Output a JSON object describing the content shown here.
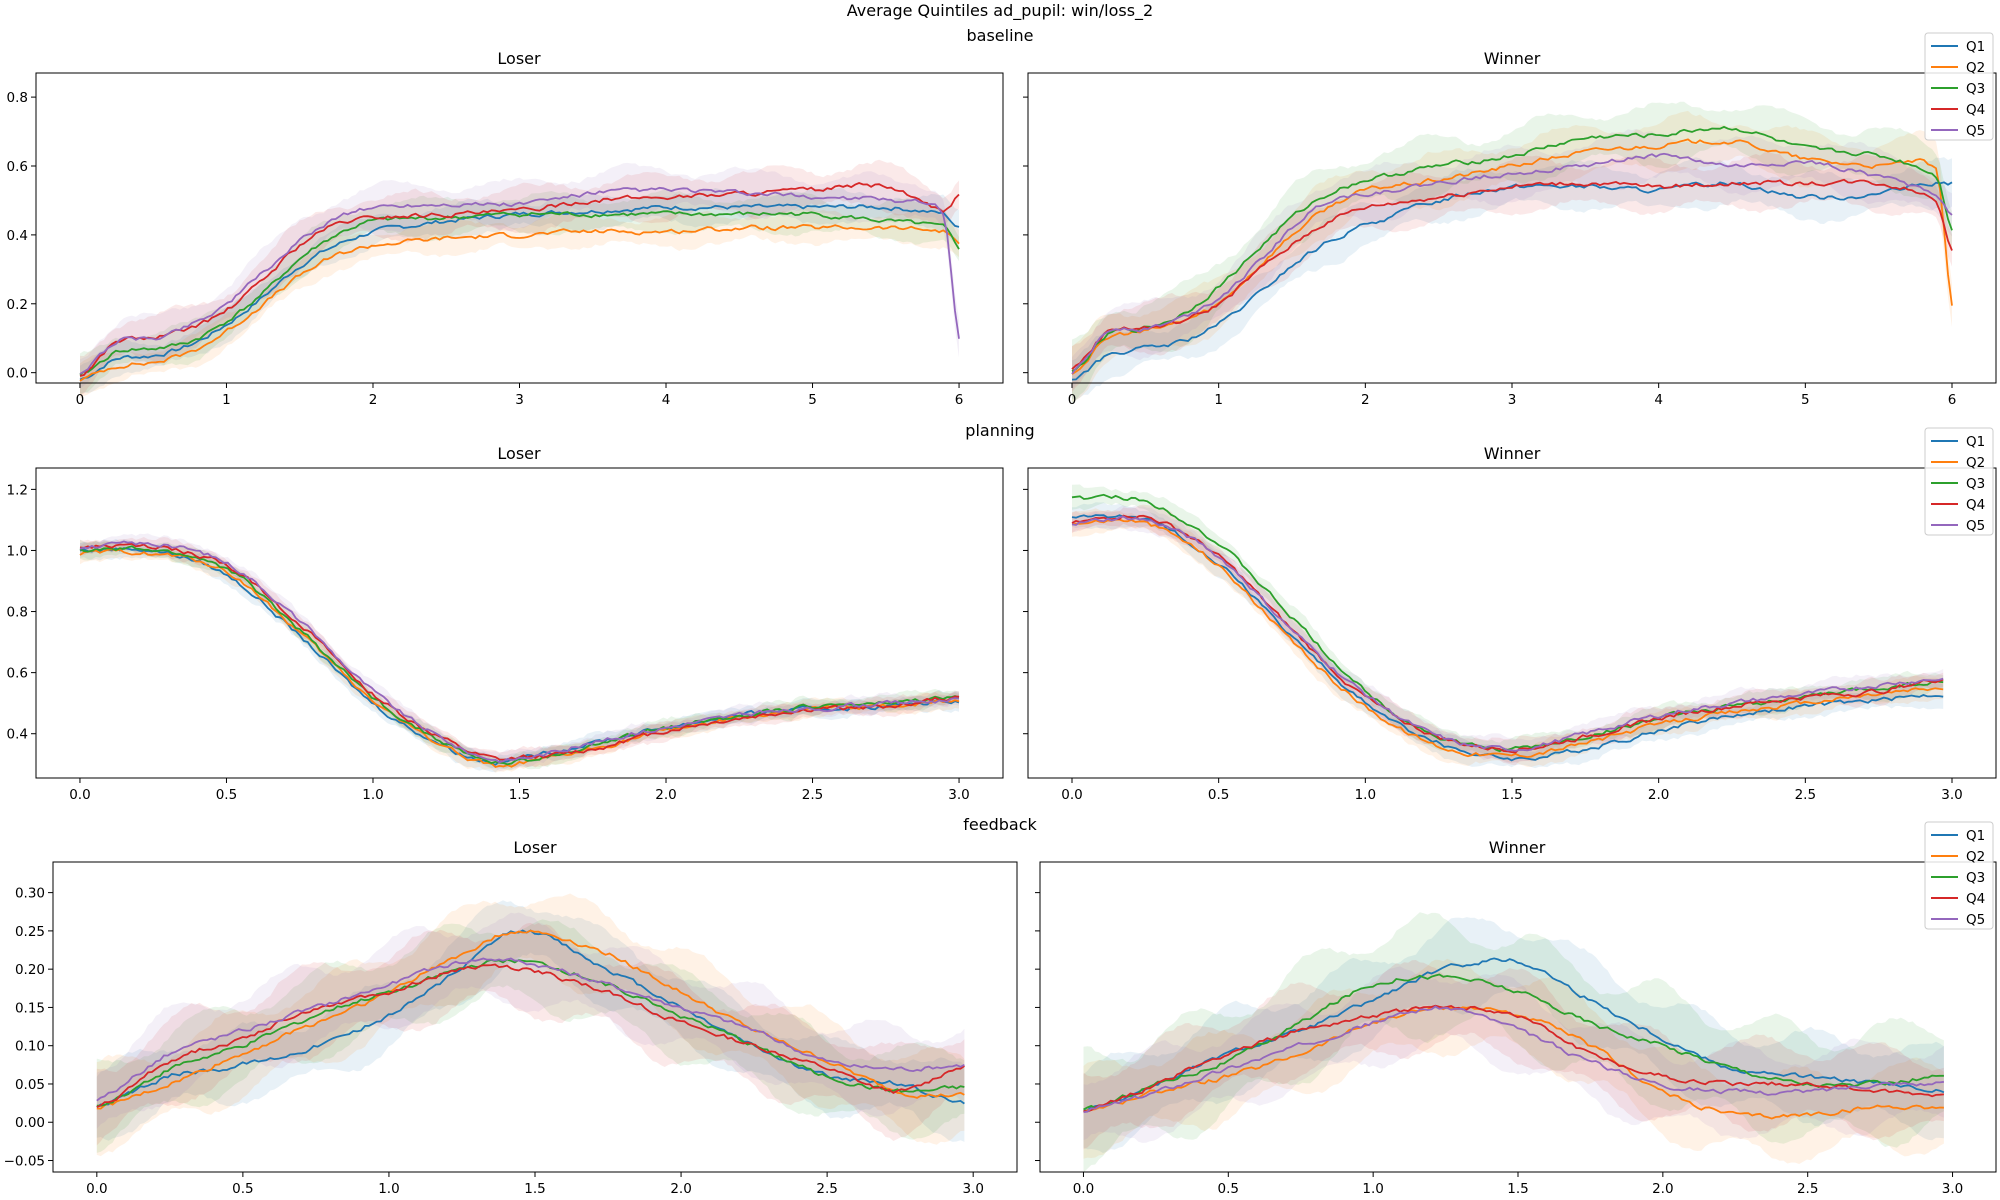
{
  "figure_title": "Average Quintiles ad_pupil: win/loss_2",
  "colors": {
    "Q1": "#1f77b4",
    "Q2": "#ff7f0e",
    "Q3": "#2ca02c",
    "Q4": "#d62728",
    "Q5": "#9467bd"
  },
  "chart_data": [
    {
      "type": "line",
      "row_title": "baseline",
      "title": "Loser",
      "xlim": [
        -0.3,
        6.3
      ],
      "ylim": [
        -0.03,
        0.87
      ],
      "xticks": [
        "0",
        "1",
        "2",
        "3",
        "4",
        "5",
        "6"
      ],
      "yticks": [
        "0.0",
        "0.2",
        "0.4",
        "0.6",
        "0.8"
      ],
      "legend": false,
      "x": [
        0,
        0.25,
        0.5,
        0.75,
        1,
        1.25,
        1.5,
        1.75,
        2,
        2.5,
        3,
        3.5,
        4,
        4.5,
        5,
        5.5,
        5.9,
        6
      ],
      "series": [
        {
          "name": "Q1",
          "values": [
            -0.02,
            0.04,
            0.05,
            0.08,
            0.14,
            0.22,
            0.31,
            0.37,
            0.41,
            0.44,
            0.46,
            0.47,
            0.48,
            0.48,
            0.48,
            0.48,
            0.46,
            0.42
          ],
          "band": 0.05
        },
        {
          "name": "Q2",
          "values": [
            -0.02,
            0.02,
            0.03,
            0.06,
            0.12,
            0.2,
            0.28,
            0.34,
            0.37,
            0.39,
            0.4,
            0.41,
            0.41,
            0.42,
            0.42,
            0.42,
            0.41,
            0.38
          ],
          "band": 0.05
        },
        {
          "name": "Q3",
          "values": [
            -0.01,
            0.06,
            0.07,
            0.09,
            0.15,
            0.23,
            0.33,
            0.4,
            0.44,
            0.45,
            0.46,
            0.46,
            0.46,
            0.46,
            0.46,
            0.44,
            0.42,
            0.36
          ],
          "band": 0.06
        },
        {
          "name": "Q4",
          "values": [
            -0.01,
            0.09,
            0.1,
            0.13,
            0.18,
            0.27,
            0.37,
            0.43,
            0.45,
            0.46,
            0.47,
            0.5,
            0.51,
            0.52,
            0.53,
            0.54,
            0.47,
            0.52
          ],
          "band": 0.07
        },
        {
          "name": "Q5",
          "values": [
            0.0,
            0.09,
            0.1,
            0.14,
            0.2,
            0.29,
            0.38,
            0.45,
            0.48,
            0.49,
            0.49,
            0.52,
            0.53,
            0.52,
            0.51,
            0.5,
            0.46,
            0.1
          ],
          "band": 0.07
        }
      ]
    },
    {
      "type": "line",
      "row_title": "baseline",
      "title": "Winner",
      "xlim": [
        -0.3,
        6.3
      ],
      "ylim": [
        -0.03,
        0.87
      ],
      "xticks": [
        "0",
        "1",
        "2",
        "3",
        "4",
        "5",
        "6"
      ],
      "yticks": [],
      "legend": true,
      "legend_position": "top-right",
      "x": [
        0,
        0.25,
        0.5,
        0.75,
        1,
        1.25,
        1.5,
        1.75,
        2,
        2.5,
        3,
        3.5,
        4,
        4.5,
        5,
        5.5,
        5.9,
        6
      ],
      "series": [
        {
          "name": "Q1",
          "values": [
            -0.02,
            0.05,
            0.07,
            0.09,
            0.14,
            0.22,
            0.31,
            0.38,
            0.43,
            0.5,
            0.54,
            0.54,
            0.53,
            0.55,
            0.51,
            0.52,
            0.55,
            0.55
          ],
          "band": 0.07
        },
        {
          "name": "Q2",
          "values": [
            0.0,
            0.1,
            0.12,
            0.15,
            0.2,
            0.3,
            0.4,
            0.48,
            0.53,
            0.56,
            0.6,
            0.64,
            0.66,
            0.67,
            0.62,
            0.6,
            0.58,
            0.2
          ],
          "band": 0.08
        },
        {
          "name": "Q3",
          "values": [
            0.0,
            0.11,
            0.13,
            0.17,
            0.25,
            0.35,
            0.45,
            0.52,
            0.56,
            0.6,
            0.63,
            0.68,
            0.69,
            0.71,
            0.65,
            0.63,
            0.57,
            0.42
          ],
          "band": 0.09
        },
        {
          "name": "Q4",
          "values": [
            0.01,
            0.12,
            0.13,
            0.15,
            0.2,
            0.29,
            0.37,
            0.44,
            0.48,
            0.51,
            0.54,
            0.55,
            0.54,
            0.55,
            0.55,
            0.55,
            0.5,
            0.36
          ],
          "band": 0.08
        },
        {
          "name": "Q5",
          "values": [
            0.0,
            0.12,
            0.13,
            0.16,
            0.22,
            0.31,
            0.42,
            0.5,
            0.52,
            0.55,
            0.58,
            0.6,
            0.63,
            0.6,
            0.61,
            0.57,
            0.52,
            0.46
          ],
          "band": 0.08
        }
      ]
    },
    {
      "type": "line",
      "row_title": "planning",
      "title": "Loser",
      "xlim": [
        -0.15,
        3.15
      ],
      "ylim": [
        0.255,
        1.27
      ],
      "xticks": [
        "0.0",
        "0.5",
        "1.0",
        "1.5",
        "2.0",
        "2.5",
        "3.0"
      ],
      "yticks": [
        "0.4",
        "0.6",
        "0.8",
        "1.0",
        "1.2"
      ],
      "legend": false,
      "x": [
        0,
        0.25,
        0.5,
        0.75,
        1.0,
        1.25,
        1.4,
        1.5,
        1.75,
        2.0,
        2.25,
        2.5,
        2.75,
        3.0
      ],
      "series": [
        {
          "name": "Q1",
          "values": [
            1.0,
            1.0,
            0.92,
            0.72,
            0.5,
            0.36,
            0.31,
            0.32,
            0.37,
            0.42,
            0.46,
            0.48,
            0.49,
            0.51
          ],
          "band": 0.03
        },
        {
          "name": "Q2",
          "values": [
            0.99,
            0.99,
            0.93,
            0.73,
            0.51,
            0.36,
            0.3,
            0.3,
            0.35,
            0.41,
            0.45,
            0.48,
            0.49,
            0.51
          ],
          "band": 0.03
        },
        {
          "name": "Q3",
          "values": [
            1.0,
            1.0,
            0.94,
            0.74,
            0.52,
            0.37,
            0.31,
            0.31,
            0.36,
            0.42,
            0.46,
            0.49,
            0.5,
            0.52
          ],
          "band": 0.03
        },
        {
          "name": "Q4",
          "values": [
            1.01,
            1.01,
            0.95,
            0.76,
            0.53,
            0.38,
            0.32,
            0.32,
            0.35,
            0.41,
            0.45,
            0.48,
            0.49,
            0.52
          ],
          "band": 0.03
        },
        {
          "name": "Q5",
          "values": [
            1.01,
            1.02,
            0.96,
            0.77,
            0.54,
            0.38,
            0.32,
            0.32,
            0.37,
            0.42,
            0.46,
            0.48,
            0.5,
            0.51
          ],
          "band": 0.03
        }
      ]
    },
    {
      "type": "line",
      "row_title": "planning",
      "title": "Winner",
      "xlim": [
        -0.15,
        3.15
      ],
      "ylim": [
        0.255,
        1.27
      ],
      "xticks": [
        "0.0",
        "0.5",
        "1.0",
        "1.5",
        "2.0",
        "2.5",
        "3.0"
      ],
      "yticks": [],
      "legend": true,
      "legend_position": "top-right",
      "x": [
        0,
        0.25,
        0.5,
        0.75,
        1.0,
        1.25,
        1.5,
        1.75,
        2.0,
        2.25,
        2.5,
        2.75,
        2.97
      ],
      "series": [
        {
          "name": "Q1",
          "values": [
            1.11,
            1.1,
            0.96,
            0.72,
            0.5,
            0.37,
            0.32,
            0.35,
            0.41,
            0.46,
            0.49,
            0.51,
            0.53
          ],
          "band": 0.04
        },
        {
          "name": "Q2",
          "values": [
            1.09,
            1.09,
            0.95,
            0.7,
            0.49,
            0.36,
            0.33,
            0.37,
            0.43,
            0.47,
            0.5,
            0.53,
            0.55
          ],
          "band": 0.04
        },
        {
          "name": "Q3",
          "values": [
            1.17,
            1.16,
            1.02,
            0.78,
            0.54,
            0.39,
            0.35,
            0.39,
            0.45,
            0.49,
            0.52,
            0.55,
            0.57
          ],
          "band": 0.04
        },
        {
          "name": "Q4",
          "values": [
            1.09,
            1.11,
            0.98,
            0.74,
            0.52,
            0.39,
            0.35,
            0.39,
            0.45,
            0.49,
            0.52,
            0.54,
            0.58
          ],
          "band": 0.04
        },
        {
          "name": "Q5",
          "values": [
            1.09,
            1.1,
            0.98,
            0.74,
            0.53,
            0.39,
            0.35,
            0.4,
            0.46,
            0.5,
            0.53,
            0.56,
            0.58
          ],
          "band": 0.04
        }
      ]
    },
    {
      "type": "line",
      "row_title": "feedback",
      "title": "Loser",
      "xlim": [
        -0.15,
        3.15
      ],
      "ylim": [
        -0.065,
        0.34
      ],
      "xticks": [
        "0.0",
        "0.5",
        "1.0",
        "1.5",
        "2.0",
        "2.5",
        "3.0"
      ],
      "yticks": [
        "−0.05",
        "0.00",
        "0.05",
        "0.10",
        "0.15",
        "0.20",
        "0.25",
        "0.30"
      ],
      "legend": false,
      "x": [
        0,
        0.25,
        0.5,
        0.75,
        1.0,
        1.25,
        1.45,
        1.75,
        2.0,
        2.25,
        2.5,
        2.75,
        2.97
      ],
      "series": [
        {
          "name": "Q1",
          "values": [
            0.02,
            0.06,
            0.075,
            0.1,
            0.14,
            0.2,
            0.25,
            0.2,
            0.15,
            0.1,
            0.06,
            0.05,
            0.025
          ],
          "band": 0.05
        },
        {
          "name": "Q2",
          "values": [
            0.02,
            0.05,
            0.09,
            0.13,
            0.17,
            0.22,
            0.25,
            0.22,
            0.17,
            0.12,
            0.08,
            0.04,
            0.035
          ],
          "band": 0.06
        },
        {
          "name": "Q3",
          "values": [
            0.02,
            0.07,
            0.1,
            0.14,
            0.17,
            0.2,
            0.21,
            0.18,
            0.14,
            0.1,
            0.06,
            0.04,
            0.045
          ],
          "band": 0.06
        },
        {
          "name": "Q4",
          "values": [
            0.02,
            0.08,
            0.11,
            0.15,
            0.17,
            0.2,
            0.2,
            0.17,
            0.13,
            0.1,
            0.07,
            0.04,
            0.075
          ],
          "band": 0.06
        },
        {
          "name": "Q5",
          "values": [
            0.03,
            0.09,
            0.12,
            0.15,
            0.18,
            0.21,
            0.21,
            0.18,
            0.15,
            0.12,
            0.08,
            0.07,
            0.075
          ],
          "band": 0.06
        }
      ]
    },
    {
      "type": "line",
      "row_title": "feedback",
      "title": "Winner",
      "xlim": [
        -0.15,
        3.15
      ],
      "ylim": [
        -0.065,
        0.34
      ],
      "xticks": [
        "0.0",
        "0.5",
        "1.0",
        "1.5",
        "2.0",
        "2.5",
        "3.0"
      ],
      "yticks": [],
      "legend": true,
      "legend_position": "top-right",
      "x": [
        0,
        0.25,
        0.5,
        0.75,
        1.0,
        1.25,
        1.5,
        1.75,
        2.0,
        2.25,
        2.5,
        2.75,
        2.97
      ],
      "series": [
        {
          "name": "Q1",
          "values": [
            0.015,
            0.05,
            0.09,
            0.12,
            0.16,
            0.2,
            0.21,
            0.16,
            0.11,
            0.07,
            0.06,
            0.05,
            0.04
          ],
          "band": 0.06
        },
        {
          "name": "Q2",
          "values": [
            0.015,
            0.04,
            0.06,
            0.09,
            0.13,
            0.15,
            0.14,
            0.1,
            0.04,
            0.01,
            0.01,
            0.02,
            0.02
          ],
          "band": 0.06
        },
        {
          "name": "Q3",
          "values": [
            0.015,
            0.05,
            0.08,
            0.13,
            0.18,
            0.19,
            0.17,
            0.13,
            0.1,
            0.07,
            0.05,
            0.05,
            0.06
          ],
          "band": 0.08
        },
        {
          "name": "Q4",
          "values": [
            0.015,
            0.05,
            0.09,
            0.12,
            0.14,
            0.15,
            0.14,
            0.09,
            0.06,
            0.05,
            0.05,
            0.04,
            0.035
          ],
          "band": 0.06
        },
        {
          "name": "Q5",
          "values": [
            0.015,
            0.04,
            0.07,
            0.1,
            0.13,
            0.15,
            0.12,
            0.08,
            0.05,
            0.04,
            0.04,
            0.05,
            0.05
          ],
          "band": 0.06
        }
      ]
    }
  ]
}
